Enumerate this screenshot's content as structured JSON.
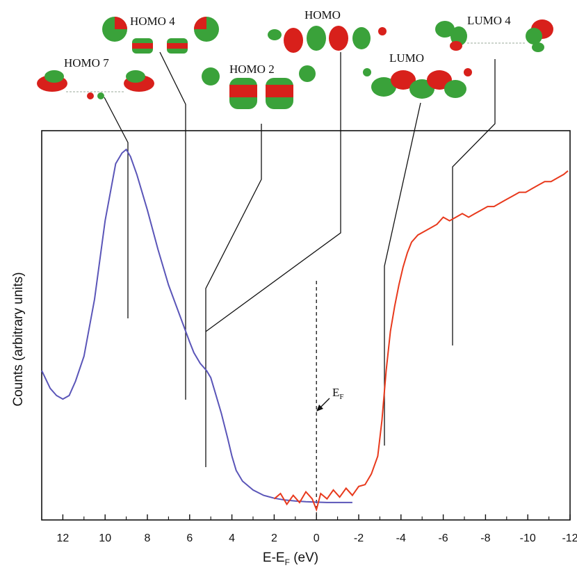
{
  "chart_data": {
    "type": "line",
    "xlabel_main": "E-E",
    "xlabel_sub": "F",
    "xlabel_unit": " (eV)",
    "ylabel": "Counts (arbitrary units)",
    "xlim": [
      13,
      -12
    ],
    "ylim": [
      0,
      100
    ],
    "x_ticks": [
      12,
      10,
      8,
      6,
      4,
      2,
      0,
      -2,
      -4,
      -6,
      -8,
      -10,
      -12
    ],
    "fermi_label_main": "E",
    "fermi_label_sub": "F",
    "fermi_x": 0,
    "series": [
      {
        "color": "#5a55b8",
        "x": [
          13.0,
          12.6,
          12.3,
          12.0,
          11.7,
          11.4,
          11.0,
          10.5,
          10.0,
          9.5,
          9.2,
          9.0,
          8.8,
          8.5,
          8.0,
          7.5,
          7.0,
          6.5,
          6.0,
          5.8,
          5.5,
          5.2,
          5.0,
          4.8,
          4.5,
          4.2,
          4.0,
          3.8,
          3.5,
          3.0,
          2.5,
          2.0,
          1.5,
          1.0,
          0.5,
          0.0,
          -0.5,
          -1.0,
          -1.7
        ],
        "y": [
          38,
          33,
          31,
          30,
          31,
          35,
          42,
          58,
          80,
          96,
          99,
          100,
          98,
          93,
          83,
          72,
          62,
          54,
          46,
          43,
          40,
          38,
          36,
          32,
          26,
          19,
          14,
          10,
          7,
          4.5,
          3,
          2.2,
          1.7,
          1.4,
          1.2,
          1.1,
          1.0,
          1.0,
          1.0
        ]
      },
      {
        "color": "#e8391c",
        "x": [
          2.0,
          1.7,
          1.4,
          1.1,
          0.8,
          0.5,
          0.2,
          0.0,
          -0.2,
          -0.5,
          -0.8,
          -1.1,
          -1.4,
          -1.7,
          -2.0,
          -2.3,
          -2.6,
          -2.9,
          -3.1,
          -3.3,
          -3.5,
          -3.7,
          -3.9,
          -4.1,
          -4.3,
          -4.5,
          -4.8,
          -5.1,
          -5.4,
          -5.7,
          -6.0,
          -6.3,
          -6.6,
          -6.9,
          -7.2,
          -7.5,
          -7.8,
          -8.1,
          -8.4,
          -8.7,
          -9.0,
          -9.3,
          -9.6,
          -9.9,
          -10.2,
          -10.5,
          -10.8,
          -11.1,
          -11.4,
          -11.7,
          -11.9
        ],
        "y": [
          2,
          3.5,
          0.5,
          3,
          1,
          4,
          2,
          -1,
          3.5,
          2,
          4.5,
          2.5,
          5,
          3,
          5.5,
          6,
          9,
          14,
          24,
          38,
          49,
          56,
          62,
          67,
          71,
          74,
          76,
          77,
          78,
          79,
          81,
          80,
          81,
          82,
          81,
          82,
          83,
          84,
          84,
          85,
          86,
          87,
          88,
          88,
          89,
          90,
          91,
          91,
          92,
          93,
          94
        ]
      }
    ],
    "orbitals": [
      {
        "label": "HOMO 7",
        "x": 8.9
      },
      {
        "label": "HOMO 4",
        "x": 6.1
      },
      {
        "label": "HOMO 2",
        "x": 5.1
      },
      {
        "label": "HOMO",
        "x": 5.1
      },
      {
        "label": "LUMO",
        "x": -3.4
      },
      {
        "label": "LUMO 4",
        "x": -6.6
      }
    ],
    "colors": {
      "axis": "#111111",
      "orbital_red": "#d8201b",
      "orbital_green": "#3aa23a"
    }
  }
}
